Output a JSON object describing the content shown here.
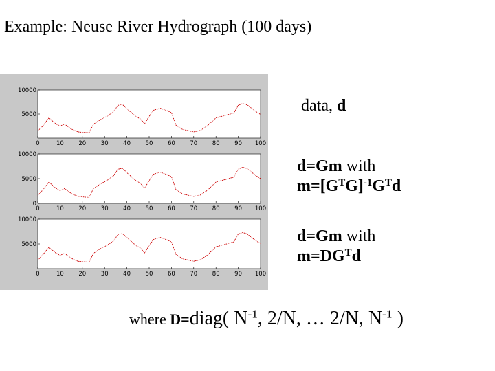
{
  "title": "Example: Neuse River Hydrograph (100 days)",
  "labels": {
    "data_text": "data, ",
    "data_symbol": "d",
    "eq1_line1_bold": "d=Gm",
    "eq1_line1_rest": " with",
    "eq1_line2_a": "m=[G",
    "eq1_line2_sup1": "T",
    "eq1_line2_b": "G]",
    "eq1_line2_sup2": "-1",
    "eq1_line2_c": "G",
    "eq1_line2_sup3": "T",
    "eq1_line2_d": "d",
    "eq2_line1_bold": "d=Gm",
    "eq2_line1_rest": " with",
    "eq2_line2_a": "m=DG",
    "eq2_line2_sup": "T",
    "eq2_line2_b": "d"
  },
  "footer": {
    "prefix": "where ",
    "d_eq": "D=",
    "diag": "diag( ",
    "n1": "N",
    "sup1": "-1",
    "middle": ", 2/N, … 2/N, N",
    "sup2": "-1",
    "end": " )"
  },
  "colors": {
    "panel_background": "#c8c8c8",
    "plot_background": "#ffffff",
    "line": "#cc0000"
  },
  "chart_data": [
    {
      "type": "line",
      "xlim": [
        0,
        100
      ],
      "ylim": [
        0,
        10000
      ],
      "x_ticks": [
        0,
        10,
        20,
        30,
        40,
        50,
        60,
        70,
        80,
        90,
        100
      ],
      "x_tick_labels": [
        "0",
        "10",
        "20",
        "30",
        "40",
        "50",
        "60",
        "70",
        "80",
        "90",
        "100"
      ],
      "y_ticks": [
        5000,
        10000
      ],
      "y_tick_labels": [
        "5000",
        "10000"
      ],
      "x": [
        0,
        2,
        5,
        8,
        10,
        12,
        15,
        18,
        20,
        23,
        25,
        28,
        31,
        34,
        36,
        38,
        41,
        44,
        46,
        48,
        50,
        52,
        55,
        58,
        60,
        62,
        65,
        68,
        70,
        73,
        76,
        80,
        84,
        88,
        90,
        92,
        94,
        96,
        98,
        100
      ],
      "values": [
        1500,
        2400,
        4200,
        3000,
        2500,
        2900,
        1900,
        1300,
        1200,
        1100,
        2900,
        3800,
        4500,
        5500,
        6800,
        7000,
        5700,
        4500,
        4000,
        3000,
        4500,
        5800,
        6200,
        5700,
        5300,
        2700,
        1800,
        1500,
        1300,
        1600,
        2500,
        4200,
        4700,
        5200,
        6800,
        7200,
        6900,
        6200,
        5500,
        4900
      ]
    },
    {
      "type": "line",
      "xlim": [
        0,
        100
      ],
      "ylim": [
        0,
        10000
      ],
      "x_ticks": [
        0,
        10,
        20,
        30,
        40,
        50,
        60,
        70,
        80,
        90,
        100
      ],
      "x_tick_labels": [
        "0",
        "10",
        "20",
        "30",
        "40",
        "50",
        "60",
        "70",
        "80",
        "90",
        "100"
      ],
      "y_ticks": [
        0,
        5000,
        10000
      ],
      "y_tick_labels": [
        "0",
        "5000",
        "10000"
      ],
      "x": [
        0,
        2,
        5,
        8,
        10,
        12,
        15,
        18,
        20,
        23,
        25,
        28,
        31,
        34,
        36,
        38,
        41,
        44,
        46,
        48,
        50,
        52,
        55,
        58,
        60,
        62,
        65,
        68,
        70,
        73,
        76,
        80,
        84,
        88,
        90,
        92,
        94,
        96,
        98,
        100
      ],
      "values": [
        1600,
        2600,
        4300,
        3100,
        2600,
        3000,
        2000,
        1400,
        1300,
        1200,
        3000,
        3900,
        4600,
        5600,
        6900,
        7100,
        5800,
        4600,
        4100,
        3100,
        4600,
        5900,
        6300,
        5800,
        5400,
        2800,
        1900,
        1600,
        1400,
        1700,
        2600,
        4300,
        4800,
        5300,
        6900,
        7300,
        7000,
        6300,
        5600,
        5000
      ]
    },
    {
      "type": "line",
      "xlim": [
        0,
        100
      ],
      "ylim": [
        0,
        10000
      ],
      "x_ticks": [
        0,
        10,
        20,
        30,
        40,
        50,
        60,
        70,
        80,
        90,
        100
      ],
      "x_tick_labels": [
        "0",
        "10",
        "20",
        "30",
        "40",
        "50",
        "60",
        "70",
        "80",
        "90",
        "100"
      ],
      "y_ticks": [
        5000,
        10000
      ],
      "y_tick_labels": [
        "5000",
        "10000"
      ],
      "x": [
        0,
        2,
        5,
        8,
        10,
        12,
        15,
        18,
        20,
        23,
        25,
        28,
        31,
        34,
        36,
        38,
        41,
        44,
        46,
        48,
        50,
        52,
        55,
        58,
        60,
        62,
        65,
        68,
        70,
        73,
        76,
        80,
        84,
        88,
        90,
        92,
        94,
        96,
        98,
        100
      ],
      "values": [
        1700,
        2700,
        4300,
        3200,
        2700,
        3100,
        2100,
        1500,
        1400,
        1300,
        3100,
        4000,
        4700,
        5600,
        6900,
        7100,
        5900,
        4700,
        4200,
        3200,
        4700,
        5900,
        6300,
        5800,
        5400,
        2900,
        2000,
        1700,
        1500,
        1800,
        2700,
        4400,
        4900,
        5400,
        7000,
        7300,
        7000,
        6300,
        5600,
        5100
      ]
    }
  ]
}
